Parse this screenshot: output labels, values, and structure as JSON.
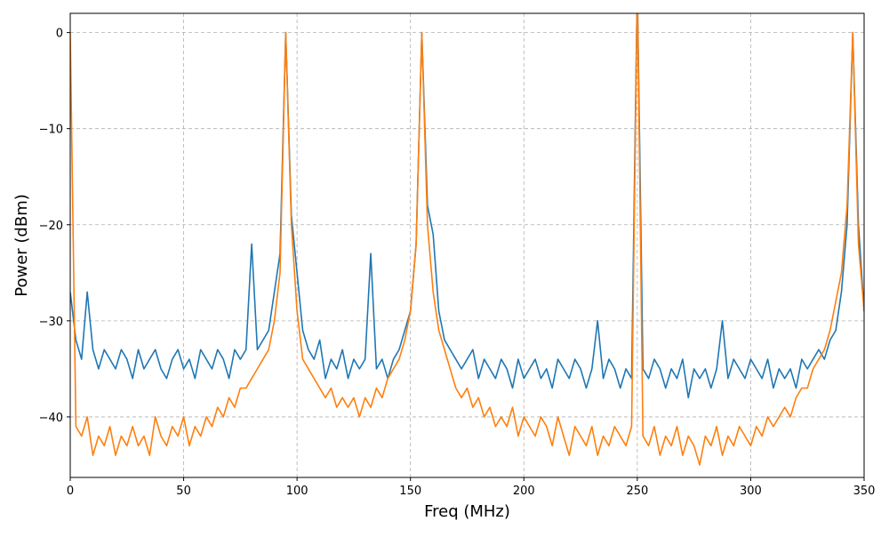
{
  "chart_data": {
    "type": "line",
    "xlabel": "Freq (MHz)",
    "ylabel": "Power (dBm)",
    "xlim": [
      0,
      350
    ],
    "ylim": [
      -46.3,
      2
    ],
    "xticks": [
      0,
      50,
      100,
      150,
      200,
      250,
      300,
      350
    ],
    "yticks": [
      {
        "value": -40,
        "label": "−40"
      },
      {
        "value": -30,
        "label": "−30"
      },
      {
        "value": -20,
        "label": "−20"
      },
      {
        "value": -10,
        "label": "−10"
      },
      0
    ],
    "grid": true,
    "x": [
      0,
      2.5,
      5,
      7.5,
      10,
      12.5,
      15,
      17.5,
      20,
      22.5,
      25,
      27.5,
      30,
      32.5,
      35,
      37.5,
      40,
      42.5,
      45,
      47.5,
      50,
      52.5,
      55,
      57.5,
      60,
      62.5,
      65,
      67.5,
      70,
      72.5,
      75,
      77.5,
      80,
      82.5,
      85,
      87.5,
      90,
      92.5,
      95,
      97.5,
      100,
      102.5,
      105,
      107.5,
      110,
      112.5,
      115,
      117.5,
      120,
      122.5,
      125,
      127.5,
      130,
      132.5,
      135,
      137.5,
      140,
      142.5,
      145,
      147.5,
      150,
      152.5,
      155,
      157.5,
      160,
      162.5,
      165,
      167.5,
      170,
      172.5,
      175,
      177.5,
      180,
      182.5,
      185,
      187.5,
      190,
      192.5,
      195,
      197.5,
      200,
      202.5,
      205,
      207.5,
      210,
      212.5,
      215,
      217.5,
      220,
      222.5,
      225,
      227.5,
      230,
      232.5,
      235,
      237.5,
      240,
      242.5,
      245,
      247.5,
      250,
      252.5,
      255,
      257.5,
      260,
      262.5,
      265,
      267.5,
      270,
      272.5,
      275,
      277.5,
      280,
      282.5,
      285,
      287.5,
      290,
      292.5,
      295,
      297.5,
      300,
      302.5,
      305,
      307.5,
      310,
      312.5,
      315,
      317.5,
      320,
      322.5,
      325,
      327.5,
      330,
      332.5,
      335,
      337.5,
      340,
      342.5,
      345,
      347.5,
      350
    ],
    "series": [
      {
        "color": "#1f77b4",
        "values": [
          -27,
          -32,
          -34,
          -27,
          -33,
          -35,
          -33,
          -34,
          -35,
          -33,
          -34,
          -36,
          -33,
          -35,
          -34,
          -33,
          -35,
          -36,
          -34,
          -33,
          -35,
          -34,
          -36,
          -33,
          -34,
          -35,
          -33,
          -34,
          -36,
          -33,
          -34,
          -33,
          -22,
          -33,
          -32,
          -31,
          -27,
          -23,
          0,
          -19,
          -25,
          -31,
          -33,
          -34,
          -32,
          -36,
          -34,
          -35,
          -33,
          -36,
          -34,
          -35,
          -34,
          -23,
          -35,
          -34,
          -36,
          -34,
          -33,
          -31,
          -29,
          -22,
          0,
          -18,
          -21,
          -29,
          -32,
          -33,
          -34,
          -35,
          -34,
          -33,
          -36,
          -34,
          -35,
          -36,
          -34,
          -35,
          -37,
          -34,
          -36,
          -35,
          -34,
          -36,
          -35,
          -37,
          -34,
          -35,
          -36,
          -34,
          -35,
          -37,
          -35,
          -30,
          -36,
          -34,
          -35,
          -37,
          -35,
          -36,
          5,
          -35,
          -36,
          -34,
          -35,
          -37,
          -35,
          -36,
          -34,
          -38,
          -35,
          -36,
          -35,
          -37,
          -35,
          -30,
          -36,
          -34,
          -35,
          -36,
          -34,
          -35,
          -36,
          -34,
          -37,
          -35,
          -36,
          -35,
          -37,
          -34,
          -35,
          -34,
          -33,
          -34,
          -32,
          -31,
          -27,
          -20,
          0,
          -20,
          -29
        ]
      },
      {
        "color": "#ff7f0e",
        "values": [
          0,
          -41,
          -42,
          -40,
          -44,
          -42,
          -43,
          -41,
          -44,
          -42,
          -43,
          -41,
          -43,
          -42,
          -44,
          -40,
          -42,
          -43,
          -41,
          -42,
          -40,
          -43,
          -41,
          -42,
          -40,
          -41,
          -39,
          -40,
          -38,
          -39,
          -37,
          -37,
          -36,
          -35,
          -34,
          -33,
          -30,
          -25,
          0,
          -20,
          -29,
          -34,
          -35,
          -36,
          -37,
          -38,
          -37,
          -39,
          -38,
          -39,
          -38,
          -40,
          -38,
          -39,
          -37,
          -38,
          -36,
          -35,
          -34,
          -32,
          -29,
          -22,
          0,
          -20,
          -27,
          -31,
          -33,
          -35,
          -37,
          -38,
          -37,
          -39,
          -38,
          -40,
          -39,
          -41,
          -40,
          -41,
          -39,
          -42,
          -40,
          -41,
          -42,
          -40,
          -41,
          -43,
          -40,
          -42,
          -44,
          -41,
          -42,
          -43,
          -41,
          -44,
          -42,
          -43,
          -41,
          -42,
          -43,
          -41,
          5,
          -42,
          -43,
          -41,
          -44,
          -42,
          -43,
          -41,
          -44,
          -42,
          -43,
          -45,
          -42,
          -43,
          -41,
          -44,
          -42,
          -43,
          -41,
          -42,
          -43,
          -41,
          -42,
          -40,
          -41,
          -40,
          -39,
          -40,
          -38,
          -37,
          -37,
          -35,
          -34,
          -33,
          -31,
          -28,
          -25,
          -18,
          0,
          -22,
          -29
        ]
      }
    ]
  }
}
